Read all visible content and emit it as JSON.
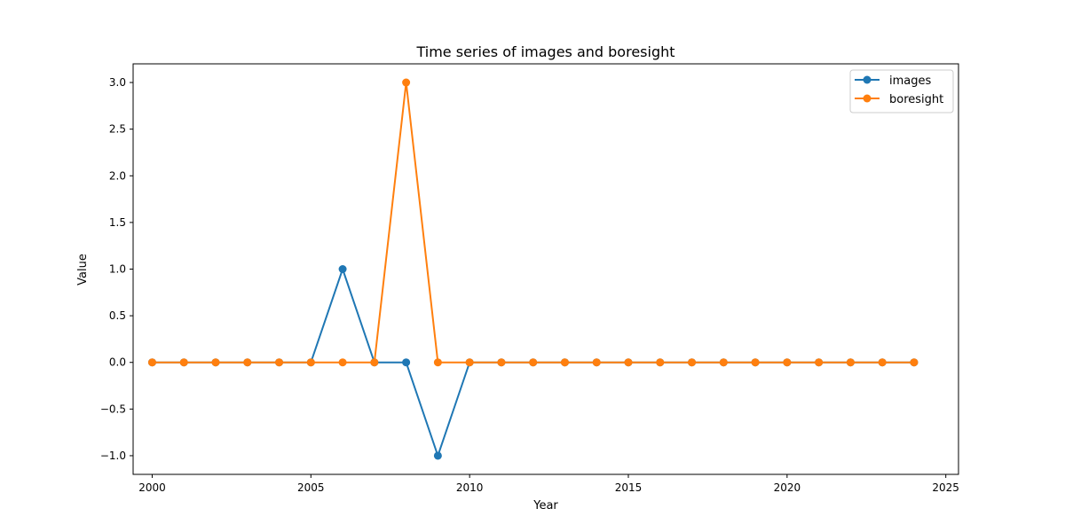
{
  "chart_data": {
    "type": "line",
    "title": "Time series of images and boresight",
    "xlabel": "Year",
    "ylabel": "Value",
    "xlim": [
      1999.4,
      2025.4
    ],
    "ylim": [
      -1.2,
      3.2
    ],
    "x_ticks": [
      2000,
      2005,
      2010,
      2015,
      2020,
      2025
    ],
    "x_tick_labels": [
      "2000",
      "2005",
      "2010",
      "2015",
      "2020",
      "2025"
    ],
    "y_ticks": [
      -1.0,
      -0.5,
      0.0,
      0.5,
      1.0,
      1.5,
      2.0,
      2.5,
      3.0
    ],
    "y_tick_labels": [
      "−1.0",
      "−0.5",
      "0.0",
      "0.5",
      "1.0",
      "1.5",
      "2.0",
      "2.5",
      "3.0"
    ],
    "grid": false,
    "legend_position": "top-right",
    "x": [
      2000,
      2001,
      2002,
      2003,
      2004,
      2005,
      2006,
      2007,
      2008,
      2009,
      2010,
      2011,
      2012,
      2013,
      2014,
      2015,
      2016,
      2017,
      2018,
      2019,
      2020,
      2021,
      2022,
      2023,
      2024
    ],
    "series": [
      {
        "name": "images",
        "color": "#1f77b4",
        "marker": "circle",
        "values": [
          0,
          0,
          0,
          0,
          0,
          0,
          1,
          0,
          0,
          -1,
          0,
          0,
          0,
          0,
          0,
          0,
          0,
          0,
          0,
          0,
          0,
          0,
          0,
          0,
          0
        ]
      },
      {
        "name": "boresight",
        "color": "#ff7f0e",
        "marker": "circle",
        "values": [
          0,
          0,
          0,
          0,
          0,
          0,
          0,
          0,
          3,
          0,
          0,
          0,
          0,
          0,
          0,
          0,
          0,
          0,
          0,
          0,
          0,
          0,
          0,
          0,
          0
        ]
      }
    ]
  }
}
